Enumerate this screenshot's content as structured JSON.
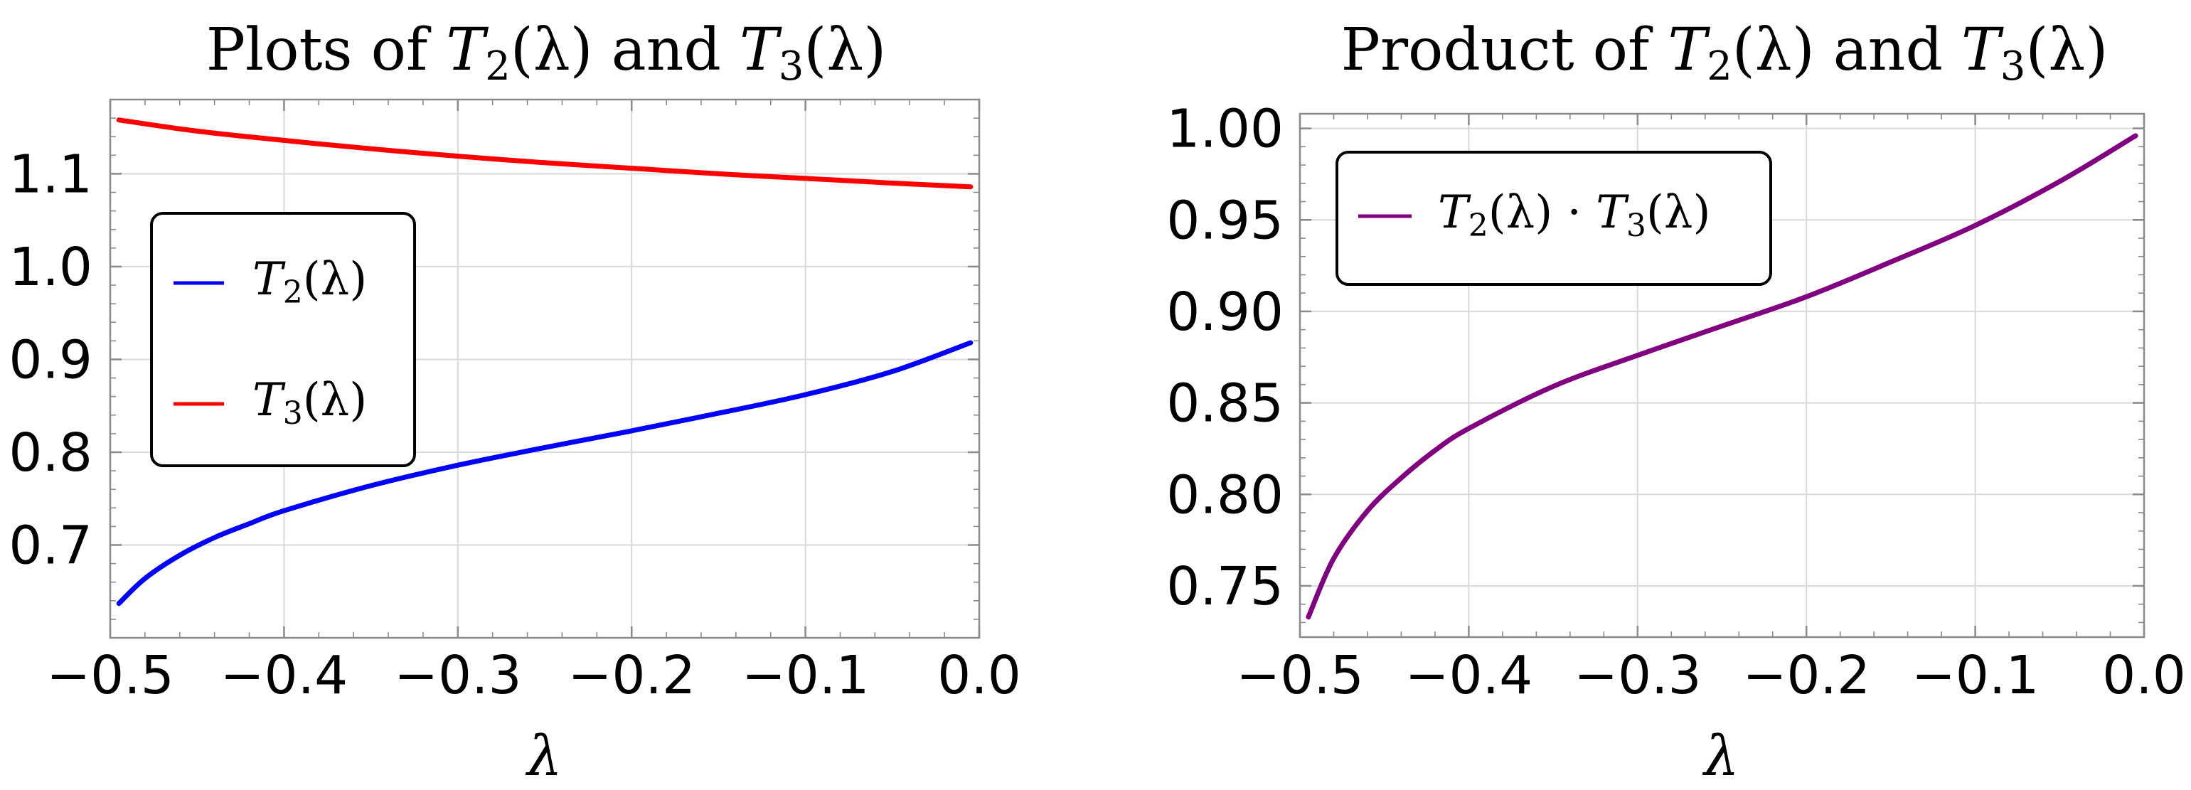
{
  "chart_data": [
    {
      "type": "line",
      "title": {
        "pre": "Plots of ",
        "a_main": "T",
        "a_sub": "2",
        "a_arg": "(λ)",
        "mid": " and ",
        "b_main": "T",
        "b_sub": "3",
        "b_arg": "(λ)"
      },
      "xlabel": "λ",
      "ylabel": "",
      "xlim": [
        -0.5,
        0.0
      ],
      "ylim": [
        0.6,
        1.18
      ],
      "x_ticks": [
        "−0.5",
        "−0.4",
        "−0.3",
        "−0.2",
        "−0.1",
        "0.0"
      ],
      "y_ticks": [
        "0.7",
        "0.8",
        "0.9",
        "1.0",
        "1.1"
      ],
      "x_tick_values": [
        -0.5,
        -0.4,
        -0.3,
        -0.2,
        -0.1,
        0.0
      ],
      "y_tick_values": [
        0.7,
        0.8,
        0.9,
        1.0,
        1.1
      ],
      "grid": true,
      "legend_position": "left",
      "series": [
        {
          "name": "T2(λ)",
          "legend": {
            "main": "T",
            "sub": "2",
            "arg": "(λ)"
          },
          "color": "#0000ff",
          "x": [
            -0.495,
            -0.48,
            -0.46,
            -0.44,
            -0.42,
            -0.4,
            -0.35,
            -0.3,
            -0.25,
            -0.2,
            -0.15,
            -0.1,
            -0.05,
            -0.005
          ],
          "values": [
            0.637,
            0.664,
            0.689,
            0.708,
            0.723,
            0.737,
            0.764,
            0.786,
            0.805,
            0.823,
            0.842,
            0.862,
            0.887,
            0.918
          ]
        },
        {
          "name": "T3(λ)",
          "legend": {
            "main": "T",
            "sub": "3",
            "arg": "(λ)"
          },
          "color": "#ff0000",
          "x": [
            -0.495,
            -0.45,
            -0.4,
            -0.35,
            -0.3,
            -0.25,
            -0.2,
            -0.15,
            -0.1,
            -0.05,
            -0.005
          ],
          "values": [
            1.158,
            1.146,
            1.136,
            1.127,
            1.119,
            1.112,
            1.106,
            1.1,
            1.095,
            1.09,
            1.086
          ]
        }
      ]
    },
    {
      "type": "line",
      "title": {
        "pre": "Product of ",
        "a_main": "T",
        "a_sub": "2",
        "a_arg": "(λ)",
        "mid": " and ",
        "b_main": "T",
        "b_sub": "3",
        "b_arg": "(λ)"
      },
      "xlabel": "λ",
      "ylabel": "",
      "xlim": [
        -0.5,
        0.0
      ],
      "ylim": [
        0.722,
        1.008
      ],
      "x_ticks": [
        "−0.5",
        "−0.4",
        "−0.3",
        "−0.2",
        "−0.1",
        "0.0"
      ],
      "y_ticks": [
        "0.75",
        "0.80",
        "0.85",
        "0.90",
        "0.95",
        "1.00"
      ],
      "x_tick_values": [
        -0.5,
        -0.4,
        -0.3,
        -0.2,
        -0.1,
        0.0
      ],
      "y_tick_values": [
        0.75,
        0.8,
        0.85,
        0.9,
        0.95,
        1.0
      ],
      "grid": true,
      "legend_position": "top-left",
      "series": [
        {
          "name": "T2(λ) · T3(λ)",
          "legend": {
            "main": "T",
            "sub": "2",
            "arg": "(λ)",
            "op": " · ",
            "main2": "T",
            "sub2": "3",
            "arg2": "(λ)"
          },
          "color": "#800080",
          "x": [
            -0.495,
            -0.48,
            -0.46,
            -0.44,
            -0.42,
            -0.4,
            -0.35,
            -0.3,
            -0.25,
            -0.2,
            -0.15,
            -0.1,
            -0.05,
            -0.005
          ],
          "values": [
            0.733,
            0.765,
            0.791,
            0.809,
            0.824,
            0.836,
            0.859,
            0.876,
            0.892,
            0.908,
            0.927,
            0.947,
            0.971,
            0.996
          ]
        }
      ]
    }
  ]
}
